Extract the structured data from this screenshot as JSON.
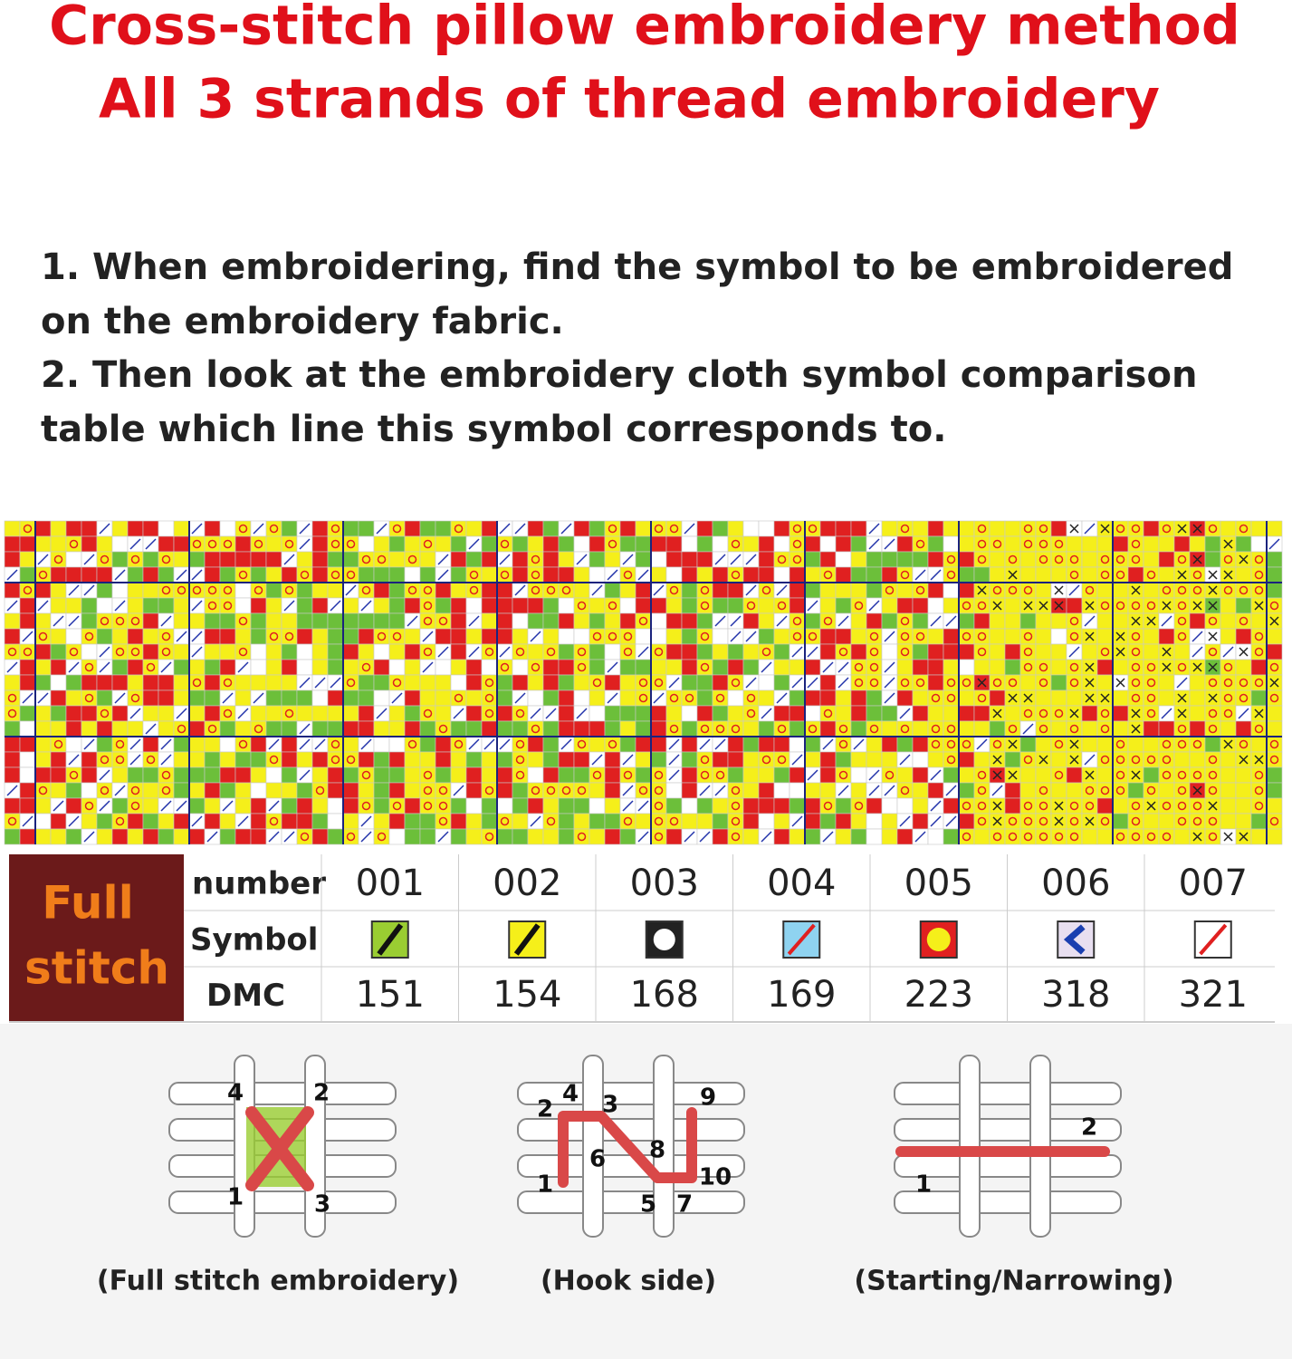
{
  "title": [
    "Cross-stitch pillow embroidery method",
    "All 3 strands of thread embroidery"
  ],
  "instructions": [
    "1. When embroidering, find the symbol to be embroidered",
    "on the embroidery fabric.",
    "2. Then look at the embroidery cloth symbol comparison",
    "table which line this symbol corresponds to."
  ],
  "table": {
    "heading": [
      "Full",
      "stitch"
    ],
    "row_labels": [
      "number",
      "Symbol",
      "DMC"
    ],
    "columns": [
      {
        "number": "001",
        "dmc": "151"
      },
      {
        "number": "002",
        "dmc": "154"
      },
      {
        "number": "003",
        "dmc": "168"
      },
      {
        "number": "004",
        "dmc": "169"
      },
      {
        "number": "005",
        "dmc": "223"
      },
      {
        "number": "006",
        "dmc": "318"
      },
      {
        "number": "007",
        "dmc": "321"
      }
    ]
  },
  "diagrams": [
    {
      "caption": "(Full stitch embroidery)",
      "labels": [
        "4",
        "2",
        "1",
        "3"
      ]
    },
    {
      "caption": "(Hook side)",
      "labels": [
        "2",
        "4",
        "3",
        "9",
        "6",
        "8",
        "1",
        "10",
        "5",
        "7"
      ]
    },
    {
      "caption": "(Starting/Narrowing)",
      "labels": [
        "2",
        "1"
      ]
    }
  ]
}
